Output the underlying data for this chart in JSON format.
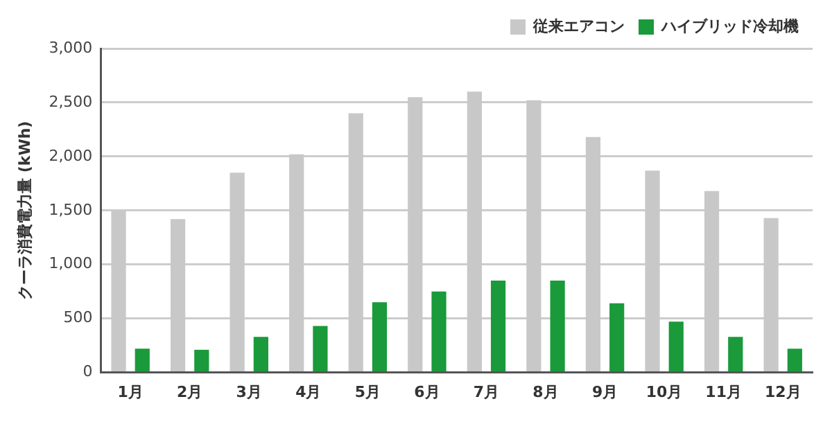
{
  "chart_data": {
    "type": "bar",
    "ylabel": "クーラ消費電力量 (kWh)",
    "categories": [
      "1月",
      "2月",
      "3月",
      "4月",
      "5月",
      "6月",
      "7月",
      "8月",
      "9月",
      "10月",
      "11月",
      "12月"
    ],
    "series": [
      {
        "name": "従来エアコン",
        "color": "#c8c8c8",
        "values": [
          1500,
          1420,
          1850,
          2020,
          2400,
          2550,
          2600,
          2520,
          2180,
          1870,
          1680,
          1430
        ]
      },
      {
        "name": "ハイブリッド冷却機",
        "color": "#1a9a3a",
        "values": [
          220,
          210,
          330,
          430,
          650,
          750,
          850,
          850,
          640,
          470,
          330,
          220
        ]
      }
    ],
    "ylim": [
      0,
      3000
    ],
    "yticks": [
      {
        "value": 0,
        "label": "0"
      },
      {
        "value": 500,
        "label": "500"
      },
      {
        "value": 1000,
        "label": "1,000"
      },
      {
        "value": 1500,
        "label": "1,500"
      },
      {
        "value": 2000,
        "label": "2,000"
      },
      {
        "value": 2500,
        "label": "2,500"
      },
      {
        "value": 3000,
        "label": "3,000"
      }
    ],
    "grid": "y",
    "legend": "top right"
  }
}
